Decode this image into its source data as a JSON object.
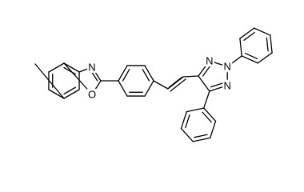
{
  "atoms": [
    {
      "label": "N"
    },
    {
      "label": "O"
    },
    {
      "label": "N"
    },
    {
      "label": "N"
    },
    {
      "label": "N"
    }
  ]
}
